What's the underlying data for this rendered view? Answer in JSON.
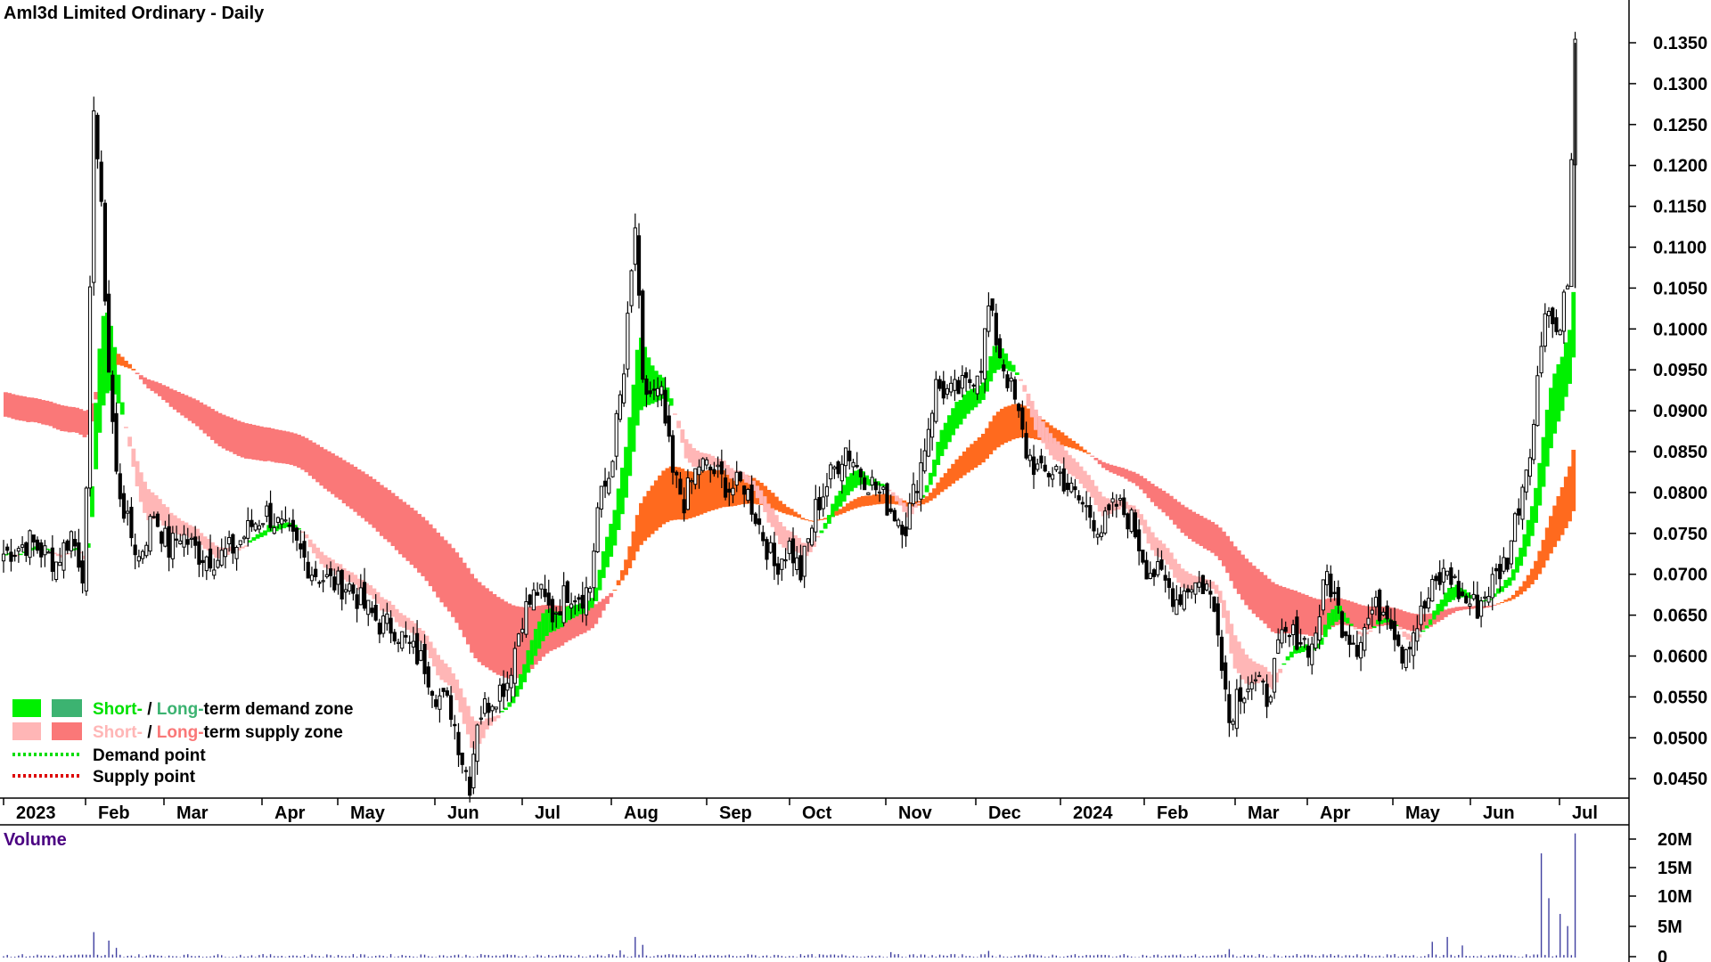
{
  "chart_data": {
    "type": "candlestick",
    "title": "Aml3d Limited Ordinary - Daily",
    "volume_label": "Volume",
    "price_axis": {
      "ylim": [
        0.0425,
        0.1395
      ],
      "ticks": [
        "0.1350",
        "0.1300",
        "0.1250",
        "0.1200",
        "0.1150",
        "0.1100",
        "0.1050",
        "0.1000",
        "0.0950",
        "0.0900",
        "0.0850",
        "0.0800",
        "0.0750",
        "0.0700",
        "0.0650",
        "0.0600",
        "0.0550",
        "0.0500",
        "0.0450"
      ]
    },
    "volume_axis": {
      "ylim": [
        0,
        21000000
      ],
      "ticks": [
        "20M",
        "15M",
        "10M",
        "5M",
        "0"
      ]
    },
    "x_labels": [
      "2023",
      "Feb",
      "Mar",
      "Apr",
      "May",
      "Jun",
      "Jul",
      "Aug",
      "Sep",
      "Oct",
      "Nov",
      "Dec",
      "2024",
      "Feb",
      "Mar",
      "Apr",
      "May",
      "Jun",
      "Jul"
    ],
    "legend": {
      "demand_row": {
        "short": "Short-",
        "sep": " / ",
        "long": "Long-",
        "rest": "term demand zone"
      },
      "supply_row": {
        "short": "Short-",
        "sep": " / ",
        "long": "Long-",
        "rest": "term supply zone"
      },
      "demand_point": "Demand point",
      "supply_point": "Supply point"
    },
    "colors": {
      "short_demand": "#00f000",
      "long_demand": "#3cb371",
      "short_supply": "#ffb6b6",
      "long_supply": "#fa7878",
      "long_demand_band": "#ff6a1e",
      "demand_point": "#00dd00",
      "supply_point": "#dd0000",
      "volume": "#4040a0",
      "candle": "#000000"
    },
    "price_path": [
      [
        0,
        0.0725
      ],
      [
        7,
        0.074
      ],
      [
        11,
        0.0725
      ],
      [
        14,
        0.0715
      ],
      [
        18,
        0.075
      ],
      [
        21,
        0.0705
      ],
      [
        22,
        0.079
      ],
      [
        24,
        0.128
      ],
      [
        26,
        0.114
      ],
      [
        28,
        0.095
      ],
      [
        30,
        0.082
      ],
      [
        33,
        0.076
      ],
      [
        36,
        0.072
      ],
      [
        40,
        0.0775
      ],
      [
        44,
        0.073
      ],
      [
        47,
        0.075
      ],
      [
        52,
        0.0725
      ],
      [
        57,
        0.072
      ],
      [
        62,
        0.0735
      ],
      [
        66,
        0.076
      ],
      [
        70,
        0.0775
      ],
      [
        73,
        0.076
      ],
      [
        77,
        0.074
      ],
      [
        82,
        0.0705
      ],
      [
        87,
        0.069
      ],
      [
        92,
        0.0685
      ],
      [
        96,
        0.066
      ],
      [
        100,
        0.064
      ],
      [
        104,
        0.0635
      ],
      [
        108,
        0.061
      ],
      [
        112,
        0.059
      ],
      [
        115,
        0.0555
      ],
      [
        119,
        0.0535
      ],
      [
        122,
        0.0475
      ],
      [
        124,
        0.0445
      ],
      [
        126,
        0.0525
      ],
      [
        130,
        0.055
      ],
      [
        134,
        0.057
      ],
      [
        138,
        0.065
      ],
      [
        142,
        0.068
      ],
      [
        146,
        0.065
      ],
      [
        150,
        0.068
      ],
      [
        154,
        0.0675
      ],
      [
        156,
        0.0685
      ],
      [
        158,
        0.078
      ],
      [
        161,
        0.082
      ],
      [
        165,
        0.0945
      ],
      [
        168,
        0.1125
      ],
      [
        170,
        0.0925
      ],
      [
        175,
        0.0915
      ],
      [
        178,
        0.082
      ],
      [
        181,
        0.079
      ],
      [
        185,
        0.0835
      ],
      [
        189,
        0.0825
      ],
      [
        193,
        0.0805
      ],
      [
        197,
        0.081
      ],
      [
        201,
        0.076
      ],
      [
        205,
        0.071
      ],
      [
        209,
        0.0735
      ],
      [
        212,
        0.07
      ],
      [
        216,
        0.078
      ],
      [
        220,
        0.082
      ],
      [
        224,
        0.0855
      ],
      [
        228,
        0.0825
      ],
      [
        232,
        0.0805
      ],
      [
        236,
        0.078
      ],
      [
        240,
        0.076
      ],
      [
        244,
        0.0835
      ],
      [
        248,
        0.093
      ],
      [
        252,
        0.092
      ],
      [
        256,
        0.093
      ],
      [
        260,
        0.096
      ],
      [
        262,
        0.1025
      ],
      [
        265,
        0.097
      ],
      [
        269,
        0.091
      ],
      [
        272,
        0.085
      ],
      [
        276,
        0.082
      ],
      [
        280,
        0.083
      ],
      [
        284,
        0.08
      ],
      [
        288,
        0.078
      ],
      [
        292,
        0.0755
      ],
      [
        296,
        0.0785
      ],
      [
        300,
        0.0765
      ],
      [
        304,
        0.071
      ],
      [
        308,
        0.0695
      ],
      [
        312,
        0.067
      ],
      [
        316,
        0.069
      ],
      [
        320,
        0.0685
      ],
      [
        323,
        0.064
      ],
      [
        326,
        0.052
      ],
      [
        328,
        0.0555
      ],
      [
        332,
        0.057
      ],
      [
        336,
        0.055
      ],
      [
        340,
        0.062
      ],
      [
        344,
        0.0625
      ],
      [
        348,
        0.061
      ],
      [
        352,
        0.07
      ],
      [
        356,
        0.064
      ],
      [
        360,
        0.0615
      ],
      [
        364,
        0.0655
      ],
      [
        368,
        0.066
      ],
      [
        372,
        0.0605
      ],
      [
        376,
        0.064
      ],
      [
        380,
        0.068
      ],
      [
        384,
        0.0705
      ],
      [
        388,
        0.067
      ],
      [
        392,
        0.066
      ],
      [
        396,
        0.069
      ],
      [
        400,
        0.072
      ],
      [
        404,
        0.081
      ],
      [
        407,
        0.0885
      ],
      [
        410,
        0.1035
      ],
      [
        413,
        0.0995
      ],
      [
        416,
        0.1055
      ],
      [
        418,
        0.1345
      ]
    ],
    "volume_spikes": [
      {
        "day": 24,
        "value": 4200000
      },
      {
        "day": 28,
        "value": 2800000
      },
      {
        "day": 30,
        "value": 1600000
      },
      {
        "day": 170,
        "value": 2100000
      },
      {
        "day": 168,
        "value": 3400000
      },
      {
        "day": 164,
        "value": 1200000
      },
      {
        "day": 236,
        "value": 900000
      },
      {
        "day": 262,
        "value": 1100000
      },
      {
        "day": 326,
        "value": 1400000
      },
      {
        "day": 384,
        "value": 3400000
      },
      {
        "day": 380,
        "value": 2600000
      },
      {
        "day": 388,
        "value": 2000000
      },
      {
        "day": 409,
        "value": 17200000
      },
      {
        "day": 411,
        "value": 9800000
      },
      {
        "day": 414,
        "value": 7200000
      },
      {
        "day": 416,
        "value": 5200000
      },
      {
        "day": 418,
        "value": 20500000
      }
    ]
  }
}
